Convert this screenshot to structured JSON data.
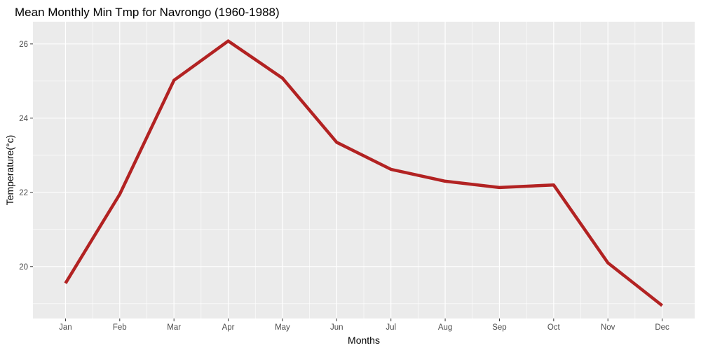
{
  "chart_data": {
    "type": "line",
    "title": "Mean Monthly Min Tmp for Navrongo (1960-1988)",
    "xlabel": "Months",
    "ylabel": "Temperature(°c)",
    "categories": [
      "Jan",
      "Feb",
      "Mar",
      "Apr",
      "May",
      "Jun",
      "Jul",
      "Aug",
      "Sep",
      "Oct",
      "Nov",
      "Dec"
    ],
    "series": [
      {
        "values": [
          19.55,
          21.95,
          25.02,
          26.08,
          25.08,
          23.35,
          22.62,
          22.3,
          22.13,
          22.2,
          20.1,
          18.95
        ]
      }
    ],
    "ylim": [
      18.6,
      26.6
    ],
    "yticks": [
      20,
      22,
      24,
      26
    ],
    "grid": true,
    "colors": {
      "line": "#b22222",
      "panel": "#ebebeb",
      "grid": "#ffffff",
      "tick": "#333333"
    }
  }
}
